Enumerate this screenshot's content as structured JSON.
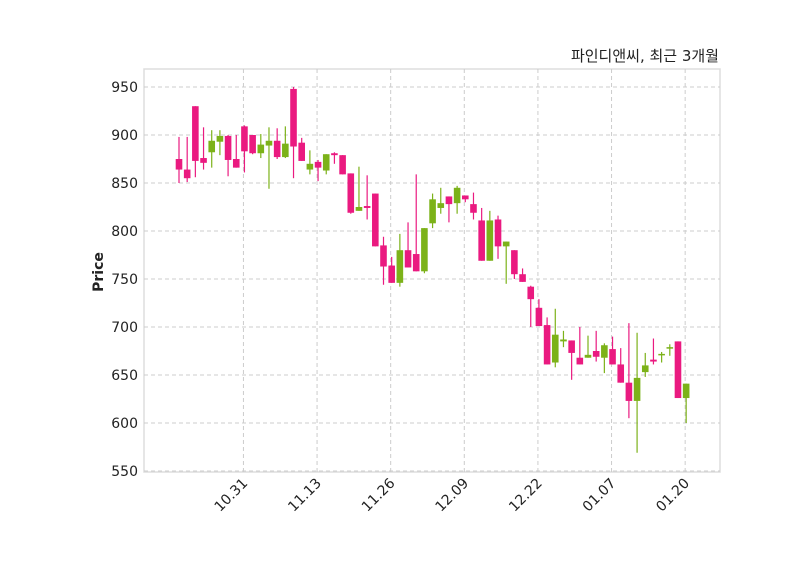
{
  "chart_data": {
    "type": "candlestick",
    "title": "파인디앤씨, 최근 3개월",
    "xlabel": "",
    "ylabel": "Price",
    "ylim": [
      548,
      967
    ],
    "yticks": [
      550,
      600,
      650,
      700,
      750,
      800,
      850,
      900,
      950
    ],
    "xticks": [
      {
        "index": 8,
        "label": "10.31"
      },
      {
        "index": 17,
        "label": "11.13"
      },
      {
        "index": 26,
        "label": "11.26"
      },
      {
        "index": 35,
        "label": "12.09"
      },
      {
        "index": 44,
        "label": "12.22"
      },
      {
        "index": 53,
        "label": "01.07"
      },
      {
        "index": 62,
        "label": "01.20"
      }
    ],
    "grid": true,
    "colors": {
      "up": "#7cb219",
      "down": "#ea1a80",
      "grid": "#cccccc",
      "frame": "#dddddd"
    },
    "candles": [
      [
        875,
        898,
        850,
        864
      ],
      [
        864,
        898,
        851,
        855
      ],
      [
        930,
        930,
        856,
        873
      ],
      [
        876,
        908,
        864,
        871
      ],
      [
        882,
        905,
        866,
        894
      ],
      [
        893,
        905,
        879,
        899
      ],
      [
        899,
        900,
        857,
        874
      ],
      [
        875,
        900,
        866,
        866
      ],
      [
        909,
        910,
        861,
        883
      ],
      [
        900,
        900,
        880,
        881
      ],
      [
        881,
        901,
        876,
        890
      ],
      [
        889,
        908,
        844,
        894
      ],
      [
        894,
        907,
        875,
        877
      ],
      [
        877,
        909,
        876,
        891
      ],
      [
        948,
        950,
        855,
        888
      ],
      [
        892,
        897,
        873,
        873
      ],
      [
        864,
        884,
        859,
        870
      ],
      [
        872,
        874,
        852,
        866
      ],
      [
        863,
        880,
        859,
        880
      ],
      [
        881,
        882,
        870,
        879
      ],
      [
        879,
        879,
        859,
        859
      ],
      [
        860,
        860,
        818,
        819
      ],
      [
        821,
        867,
        821,
        825
      ],
      [
        826,
        858,
        812,
        824
      ],
      [
        839,
        839,
        784,
        784
      ],
      [
        785,
        794,
        744,
        763
      ],
      [
        764,
        773,
        746,
        746
      ],
      [
        746,
        797,
        742,
        780
      ],
      [
        780,
        809,
        762,
        762
      ],
      [
        776,
        859,
        758,
        758
      ],
      [
        758,
        803,
        756,
        803
      ],
      [
        808,
        839,
        803,
        833
      ],
      [
        824,
        845,
        818,
        829
      ],
      [
        836,
        836,
        809,
        828
      ],
      [
        829,
        847,
        818,
        845
      ],
      [
        837,
        837,
        830,
        833
      ],
      [
        828,
        840,
        812,
        819
      ],
      [
        811,
        824,
        769,
        769
      ],
      [
        769,
        821,
        769,
        811
      ],
      [
        812,
        816,
        771,
        784
      ],
      [
        784,
        789,
        745,
        789
      ],
      [
        780,
        780,
        750,
        755
      ],
      [
        755,
        761,
        747,
        747
      ],
      [
        742,
        743,
        700,
        729
      ],
      [
        720,
        729,
        701,
        701
      ],
      [
        702,
        710,
        661,
        661
      ],
      [
        663,
        719,
        658,
        692
      ],
      [
        685,
        696,
        679,
        687
      ],
      [
        686,
        686,
        645,
        673
      ],
      [
        668,
        700,
        661,
        661
      ],
      [
        668,
        691,
        668,
        671
      ],
      [
        675,
        696,
        664,
        669
      ],
      [
        668,
        683,
        652,
        681
      ],
      [
        677,
        690,
        661,
        661
      ],
      [
        661,
        678,
        642,
        642
      ],
      [
        642,
        704,
        605,
        623
      ],
      [
        623,
        694,
        569,
        647
      ],
      [
        653,
        673,
        648,
        660
      ],
      [
        666,
        688,
        661,
        664
      ],
      [
        671,
        674,
        663,
        672
      ],
      [
        678,
        682,
        670,
        679
      ],
      [
        685,
        685,
        626,
        626
      ],
      [
        626,
        641,
        600,
        641
      ]
    ],
    "candle_fields": [
      "open",
      "high",
      "low",
      "close"
    ]
  }
}
